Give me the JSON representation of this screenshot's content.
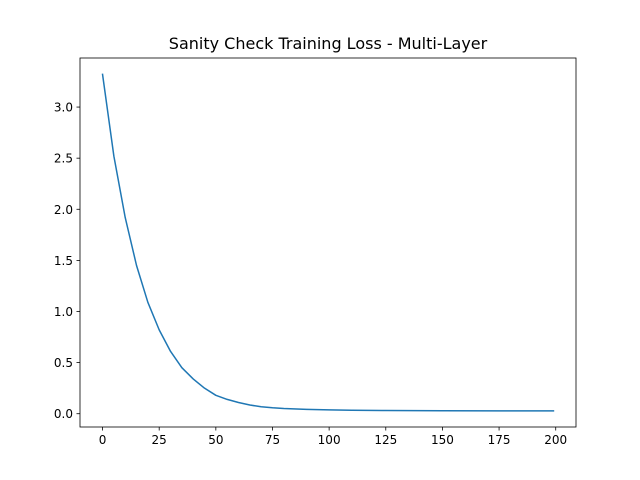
{
  "chart_data": {
    "type": "line",
    "title": "Sanity Check Training Loss - Multi-Layer",
    "xlabel": "",
    "ylabel": "",
    "xlim": [
      -9.95,
      208.95
    ],
    "ylim": [
      -0.13,
      3.48
    ],
    "xticks": [
      0,
      25,
      50,
      75,
      100,
      125,
      150,
      175,
      200
    ],
    "yticks": [
      0.0,
      0.5,
      1.0,
      1.5,
      2.0,
      2.5,
      3.0
    ],
    "ytick_labels": [
      "0.0",
      "0.5",
      "1.0",
      "1.5",
      "2.0",
      "2.5",
      "3.0"
    ],
    "xtick_labels": [
      "0",
      "25",
      "50",
      "75",
      "100",
      "125",
      "150",
      "175",
      "200"
    ],
    "grid": false,
    "legend": "none",
    "series": [
      {
        "color": "#1f77b4",
        "x": [
          0,
          5,
          10,
          15,
          20,
          25,
          30,
          35,
          40,
          45,
          50,
          55,
          60,
          65,
          70,
          75,
          80,
          90,
          100,
          110,
          125,
          150,
          175,
          199
        ],
        "y": [
          3.32,
          2.52,
          1.92,
          1.45,
          1.09,
          0.82,
          0.61,
          0.45,
          0.34,
          0.25,
          0.18,
          0.14,
          0.11,
          0.085,
          0.068,
          0.058,
          0.051,
          0.042,
          0.037,
          0.034,
          0.031,
          0.029,
          0.028,
          0.028
        ]
      }
    ]
  }
}
